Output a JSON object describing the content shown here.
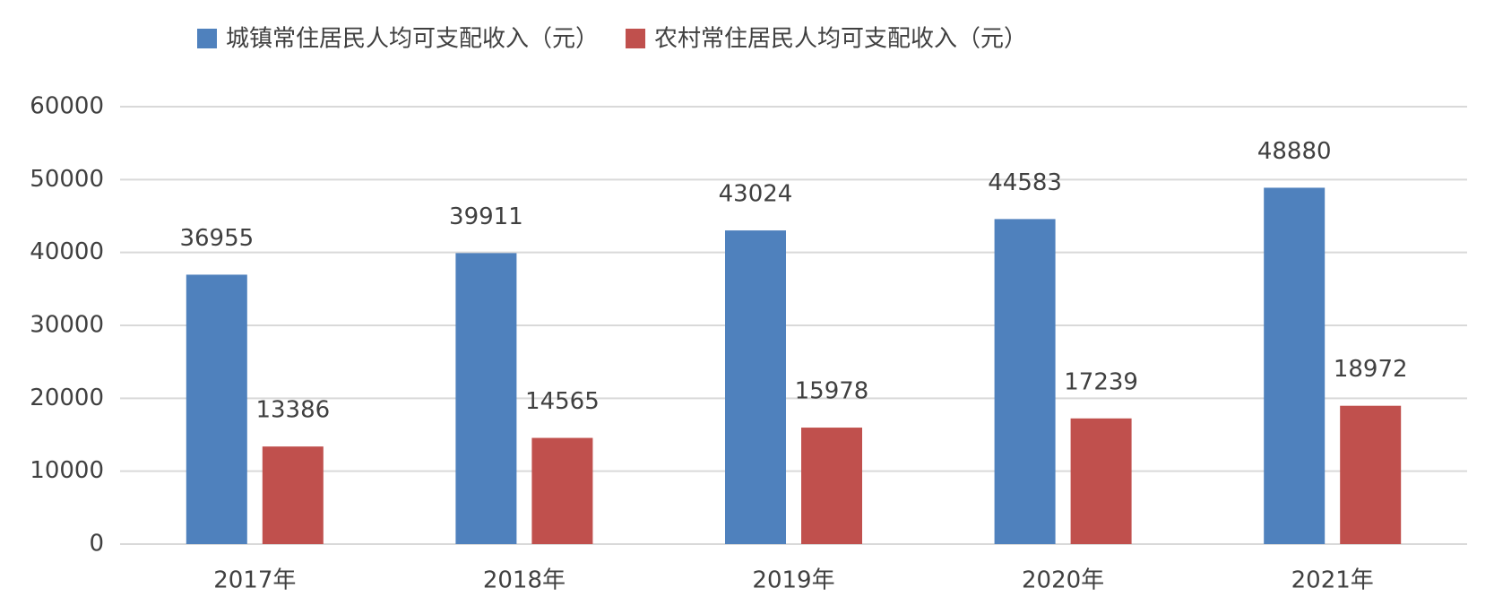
{
  "chart_data": {
    "type": "bar",
    "categories": [
      "2017年",
      "2018年",
      "2019年",
      "2020年",
      "2021年"
    ],
    "series": [
      {
        "name": "城镇常住居民人均可支配收入（元）",
        "color": "#4f81bd",
        "values": [
          36955,
          39911,
          43024,
          44583,
          48880
        ]
      },
      {
        "name": "农村常住居民人均可支配收入（元）",
        "color": "#c0504d",
        "values": [
          13386,
          14565,
          15978,
          17239,
          18972
        ]
      }
    ],
    "ylim": [
      0,
      60000
    ],
    "yticks": [
      0,
      10000,
      20000,
      30000,
      40000,
      50000,
      60000
    ],
    "grid": true,
    "legend": "top"
  }
}
